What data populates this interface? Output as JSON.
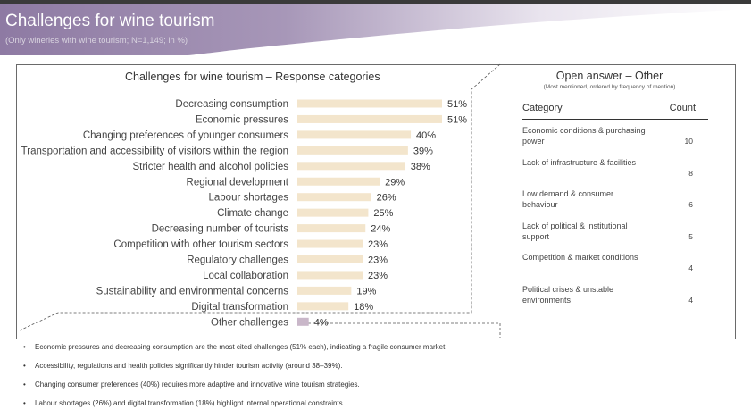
{
  "header": {
    "title": "Challenges for wine tourism",
    "subtitle": "(Only wineries with wine tourism; N=1,149; in %)"
  },
  "chart_data": {
    "type": "bar",
    "orientation": "horizontal",
    "title": "Challenges for wine tourism – Response categories",
    "categories": [
      "Decreasing consumption",
      "Economic pressures",
      "Changing preferences of younger consumers",
      "Transportation and accessibility of visitors within the region",
      "Stricter health and alcohol policies",
      "Regional development",
      "Labour shortages",
      "Climate change",
      "Decreasing number of tourists",
      "Competition with other tourism sectors",
      "Regulatory challenges",
      "Local collaboration",
      "Sustainability and environmental concerns",
      "Digital transformation",
      "Other challenges"
    ],
    "values": [
      51,
      51,
      40,
      39,
      38,
      29,
      26,
      25,
      24,
      23,
      23,
      23,
      19,
      18,
      4
    ],
    "value_labels": [
      "51%",
      "51%",
      "40%",
      "39%",
      "38%",
      "29%",
      "26%",
      "25%",
      "24%",
      "23%",
      "23%",
      "23%",
      "19%",
      "18%",
      "4%"
    ],
    "highlight_category": "Other challenges",
    "colors": {
      "bar": "#f3e5cc",
      "highlight": "#c9b7c9"
    },
    "xlim": [
      0,
      51
    ]
  },
  "open_answer": {
    "title": "Open answer – Other",
    "subtitle": "(Most mentioned, ordered by frequency of mention)",
    "col_category": "Category",
    "col_count": "Count",
    "rows": [
      {
        "category": "Economic conditions & purchasing power",
        "count": "10"
      },
      {
        "category": "Lack of infrastructure & facilities",
        "count": "8"
      },
      {
        "category": "Low demand & consumer behaviour",
        "count": "6"
      },
      {
        "category": "Lack of political & institutional support",
        "count": "5"
      },
      {
        "category": "Competition & market conditions",
        "count": "4"
      },
      {
        "category": "Political crises & unstable environments",
        "count": "4"
      }
    ]
  },
  "notes": {
    "bullet": "•",
    "items": [
      "Economic pressures and decreasing consumption are the most cited challenges (51% each), indicating a fragile consumer market.",
      "Accessibility, regulations and health policies significantly hinder tourism activity (around 38–39%).",
      "Changing consumer preferences (40%) requires more adaptive and innovative wine tourism strategies.",
      "Labour shortages (26%) and digital transformation (18%) highlight internal operational constraints."
    ]
  },
  "theme": {
    "banner_start": "#8e7aa3",
    "banner_end": "#ffffff"
  }
}
